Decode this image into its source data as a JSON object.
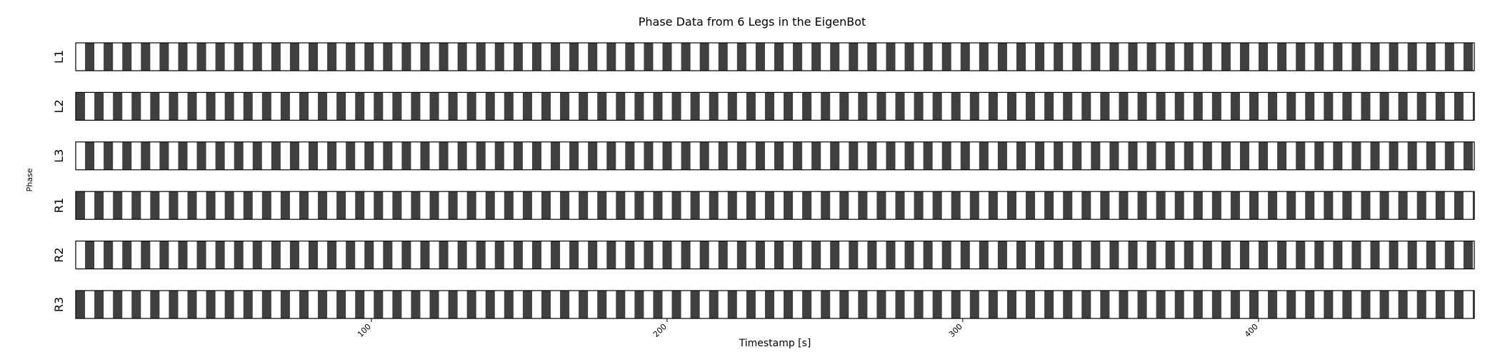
{
  "chart_data": {
    "type": "broken_barh",
    "title": "Phase Data from 6 Legs in the EigenBot",
    "xlabel": "Timestamp [s]",
    "ylabel": "Phase",
    "xlim": [
      0,
      473
    ],
    "xticks": [
      100,
      200,
      300,
      400
    ],
    "xtick_labels": [
      "100",
      "200",
      "300",
      "400"
    ],
    "colors": {
      "stance": "#404040",
      "swing": "#ffffff",
      "frame": "#000000"
    },
    "stride_period_s": 6.3,
    "stance_duration_s": 3.15,
    "legs": [
      {
        "label": "L1",
        "first_stance_start_s": 3.15
      },
      {
        "label": "L2",
        "first_stance_start_s": 0.0
      },
      {
        "label": "L3",
        "first_stance_start_s": 3.15
      },
      {
        "label": "R1",
        "first_stance_start_s": 0.0
      },
      {
        "label": "R2",
        "first_stance_start_s": 3.15
      },
      {
        "label": "R3",
        "first_stance_start_s": 0.0
      }
    ]
  }
}
